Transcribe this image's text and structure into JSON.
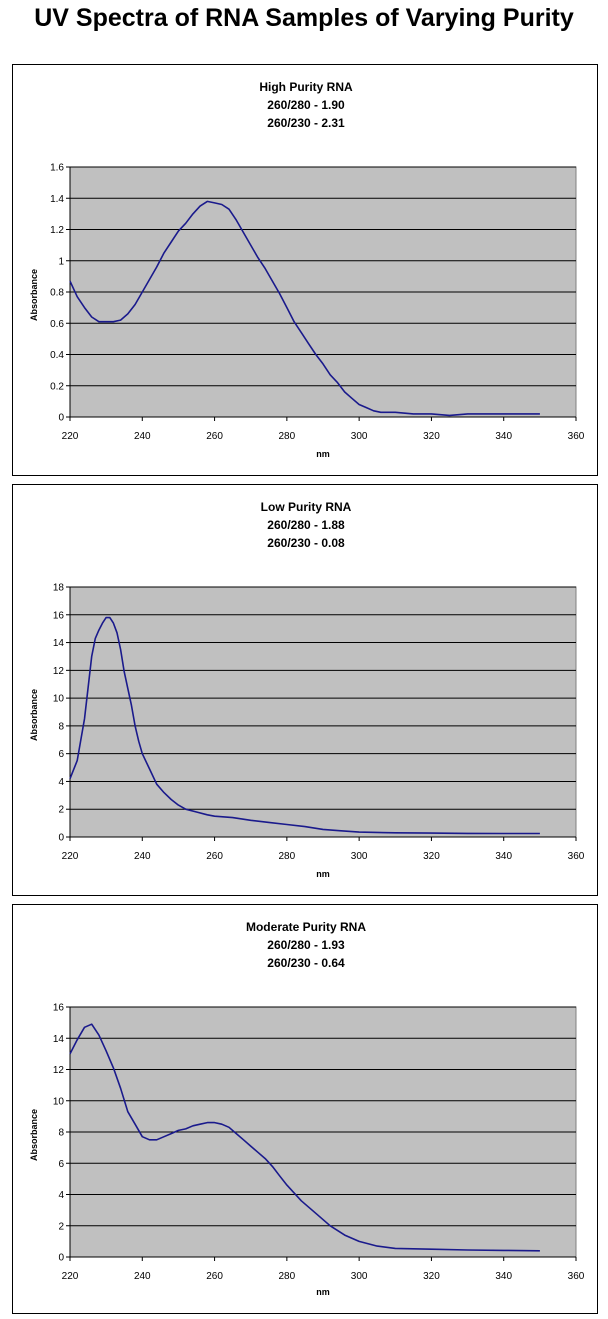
{
  "page_title": "UV Spectra of RNA Samples of Varying Purity",
  "colors": {
    "plot_background": "#c0c0c0",
    "series_line": "#1a1a8c",
    "grid": "#000000"
  },
  "chart_data": [
    {
      "type": "line",
      "title": "High Purity RNA",
      "subtitle_lines": [
        "260/280 - 1.90",
        "260/230 - 2.31"
      ],
      "xlabel": "nm",
      "ylabel": "Absorbance",
      "xlim": [
        220,
        360
      ],
      "ylim": [
        0,
        1.6
      ],
      "xticks": [
        "220",
        "240",
        "260",
        "280",
        "300",
        "320",
        "340",
        "360"
      ],
      "yticks": [
        "0",
        "0.2",
        "0.4",
        "0.6",
        "0.8",
        "1",
        "1.2",
        "1.4",
        "1.6"
      ],
      "grid": "horizontal",
      "legend": "none",
      "series": [
        {
          "x": [
            220,
            222,
            224,
            226,
            228,
            230,
            232,
            234,
            236,
            238,
            240,
            242,
            244,
            246,
            248,
            250,
            252,
            254,
            256,
            258,
            260,
            262,
            264,
            266,
            268,
            270,
            272,
            274,
            276,
            278,
            280,
            282,
            284,
            286,
            288,
            290,
            292,
            294,
            296,
            298,
            300,
            302,
            304,
            306,
            308,
            310,
            315,
            320,
            325,
            330,
            335,
            340,
            345,
            350
          ],
          "y": [
            0.87,
            0.77,
            0.7,
            0.64,
            0.61,
            0.61,
            0.61,
            0.62,
            0.66,
            0.72,
            0.8,
            0.88,
            0.96,
            1.05,
            1.12,
            1.19,
            1.24,
            1.3,
            1.35,
            1.38,
            1.37,
            1.36,
            1.33,
            1.26,
            1.18,
            1.1,
            1.02,
            0.95,
            0.87,
            0.79,
            0.7,
            0.61,
            0.54,
            0.47,
            0.4,
            0.34,
            0.27,
            0.22,
            0.16,
            0.12,
            0.08,
            0.06,
            0.04,
            0.03,
            0.03,
            0.03,
            0.02,
            0.02,
            0.01,
            0.02,
            0.02,
            0.02,
            0.02,
            0.02
          ]
        }
      ]
    },
    {
      "type": "line",
      "title": "Low Purity RNA",
      "subtitle_lines": [
        "260/280 - 1.88",
        "260/230 - 0.08"
      ],
      "xlabel": "nm",
      "ylabel": "Absorbance",
      "xlim": [
        220,
        360
      ],
      "ylim": [
        0,
        18
      ],
      "xticks": [
        "220",
        "240",
        "260",
        "280",
        "300",
        "320",
        "340",
        "360"
      ],
      "yticks": [
        "0",
        "2",
        "4",
        "6",
        "8",
        "10",
        "12",
        "14",
        "16",
        "18"
      ],
      "grid": "horizontal",
      "legend": "none",
      "series": [
        {
          "x": [
            220,
            222,
            224,
            226,
            227,
            228,
            229,
            230,
            231,
            232,
            233,
            234,
            235,
            236,
            237,
            238,
            239,
            240,
            242,
            244,
            246,
            248,
            250,
            252,
            255,
            258,
            260,
            265,
            270,
            275,
            280,
            285,
            290,
            295,
            300,
            310,
            320,
            330,
            340,
            350
          ],
          "y": [
            4.2,
            5.5,
            8.5,
            13.0,
            14.3,
            14.9,
            15.4,
            15.8,
            15.8,
            15.4,
            14.7,
            13.5,
            11.9,
            10.7,
            9.5,
            8.0,
            6.9,
            6.0,
            4.9,
            3.8,
            3.2,
            2.7,
            2.3,
            2.0,
            1.8,
            1.6,
            1.5,
            1.4,
            1.2,
            1.05,
            0.9,
            0.75,
            0.55,
            0.45,
            0.35,
            0.3,
            0.28,
            0.26,
            0.25,
            0.25
          ]
        }
      ]
    },
    {
      "type": "line",
      "title": "Moderate Purity RNA",
      "subtitle_lines": [
        "260/280 - 1.93",
        "260/230 - 0.64"
      ],
      "xlabel": "nm",
      "ylabel": "Absorbance",
      "xlim": [
        220,
        360
      ],
      "ylim": [
        0,
        16
      ],
      "xticks": [
        "220",
        "240",
        "260",
        "280",
        "300",
        "320",
        "340",
        "360"
      ],
      "yticks": [
        "0",
        "2",
        "4",
        "6",
        "8",
        "10",
        "12",
        "14",
        "16"
      ],
      "grid": "horizontal",
      "legend": "none",
      "series": [
        {
          "x": [
            220,
            222,
            224,
            226,
            228,
            230,
            232,
            234,
            236,
            238,
            240,
            242,
            244,
            246,
            248,
            250,
            252,
            254,
            256,
            258,
            260,
            262,
            264,
            266,
            268,
            270,
            272,
            274,
            276,
            278,
            280,
            284,
            288,
            292,
            296,
            300,
            305,
            310,
            320,
            330,
            340,
            350
          ],
          "y": [
            13.0,
            13.9,
            14.7,
            14.9,
            14.2,
            13.2,
            12.1,
            10.8,
            9.3,
            8.5,
            7.7,
            7.5,
            7.5,
            7.7,
            7.9,
            8.1,
            8.2,
            8.4,
            8.5,
            8.6,
            8.6,
            8.5,
            8.3,
            7.9,
            7.5,
            7.1,
            6.7,
            6.3,
            5.8,
            5.2,
            4.6,
            3.6,
            2.8,
            2.0,
            1.4,
            1.0,
            0.7,
            0.55,
            0.5,
            0.45,
            0.42,
            0.4
          ]
        }
      ]
    }
  ]
}
